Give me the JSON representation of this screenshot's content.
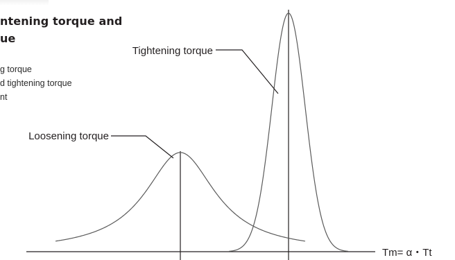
{
  "title": {
    "line1": "ntening torque and",
    "line2": "ue"
  },
  "legend": [
    "g torque",
    "d tightening torque",
    "nt"
  ],
  "labels": {
    "tightening": "Tightening torque",
    "loosening": "Loosening torque",
    "axis": "Tm= α・Tt"
  },
  "colors": {
    "curve": "#5a5a5a",
    "axis": "#231f20",
    "text": "#231f20"
  }
}
